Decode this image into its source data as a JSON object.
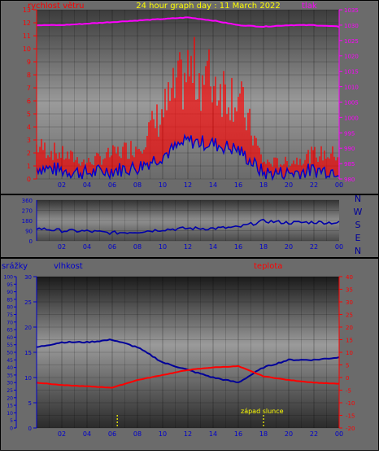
{
  "panel1": {
    "title": "24 hour graph day : 11 March 2022",
    "left_label": "rychlost větru",
    "right_label": "tlak",
    "left_ticks": [
      "0",
      "1",
      "2",
      "3",
      "4",
      "5",
      "6",
      "7",
      "8",
      "9",
      "10",
      "11",
      "12",
      "13"
    ],
    "right_ticks": [
      "980",
      "985",
      "990",
      "995",
      "1000",
      "1005",
      "1010",
      "1015",
      "1020",
      "1025",
      "1030",
      "1035"
    ]
  },
  "panel2": {
    "left_ticks": [
      "0",
      "90",
      "180",
      "270",
      "360"
    ],
    "compass": [
      "N",
      "W",
      "S",
      "E",
      "N"
    ]
  },
  "panel3": {
    "label_rain": "srážky",
    "label_humidity": "vlhkost",
    "label_temperature": "teplota",
    "annotation": "západ slunce",
    "rain_ticks": [
      "0",
      "5",
      "10",
      "15",
      "20",
      "25",
      "30",
      "35",
      "40",
      "45",
      "50",
      "55",
      "60",
      "65",
      "70",
      "75",
      "80",
      "85",
      "90",
      "95",
      "100"
    ],
    "hum_ticks": [
      "0",
      "5",
      "10",
      "15",
      "20",
      "25",
      "30"
    ],
    "temp_ticks": [
      "-20",
      "-15",
      "-10",
      "-5",
      "0",
      "5",
      "10",
      "15",
      "20",
      "25",
      "30",
      "35",
      "40"
    ]
  },
  "x_ticks": [
    "02",
    "04",
    "06",
    "08",
    "10",
    "12",
    "14",
    "16",
    "18",
    "20",
    "22",
    "00"
  ],
  "colors": {
    "wind": "#ff0000",
    "wind_low": "#0000cc",
    "pressure": "#ff00ff",
    "direction": "#0000aa",
    "humidity": "#000099",
    "temperature": "#ff0000",
    "title": "#ffff00",
    "sunset": "#ffff00"
  },
  "chart_data": [
    {
      "type": "line",
      "title": "24 hour graph day : 11 March 2022",
      "ylabel": "rychlost větru",
      "y2label": "tlak",
      "ylim": [
        0,
        13
      ],
      "y2lim": [
        980,
        1035
      ],
      "x": [
        "00",
        "02",
        "04",
        "06",
        "08",
        "10",
        "12",
        "14",
        "16",
        "18",
        "20",
        "22",
        "00"
      ],
      "series": [
        {
          "name": "rychlost větru",
          "values": [
            2,
            1.5,
            1,
            1.5,
            2,
            4,
            6.5,
            6,
            5,
            1,
            1,
            1.5,
            1.5
          ]
        },
        {
          "name": "tlak",
          "values": [
            1030,
            1030,
            1030.5,
            1031,
            1031.5,
            1032,
            1032.5,
            1031.5,
            1030,
            1029.5,
            1030,
            1030,
            1029.5
          ]
        }
      ]
    },
    {
      "type": "line",
      "ylim": [
        0,
        360
      ],
      "x": [
        "00",
        "02",
        "04",
        "06",
        "08",
        "10",
        "12",
        "14",
        "16",
        "18",
        "20",
        "22",
        "00"
      ],
      "series": [
        {
          "values": [
            110,
            90,
            85,
            70,
            80,
            100,
            110,
            110,
            120,
            175,
            160,
            165,
            160
          ]
        }
      ]
    },
    {
      "type": "line",
      "xlabel": "",
      "ylabel": "vlhkost",
      "y2label": "teplota",
      "ylim": [
        0,
        30
      ],
      "y2lim": [
        -20,
        40
      ],
      "annotations": [
        {
          "text": "západ slunce",
          "x": "18"
        }
      ],
      "x": [
        "00",
        "02",
        "04",
        "06",
        "08",
        "10",
        "12",
        "14",
        "16",
        "18",
        "20",
        "22",
        "00"
      ],
      "series": [
        {
          "name": "vlhkost",
          "values": [
            16,
            17,
            17,
            17.5,
            16,
            13,
            11.5,
            10,
            9,
            12,
            13.5,
            13.5,
            14
          ]
        },
        {
          "name": "teplota",
          "values": [
            -2,
            -3,
            -3.5,
            -4,
            -1,
            1,
            3,
            4,
            4.5,
            0.5,
            -1,
            -2,
            -2.5
          ]
        }
      ]
    }
  ]
}
